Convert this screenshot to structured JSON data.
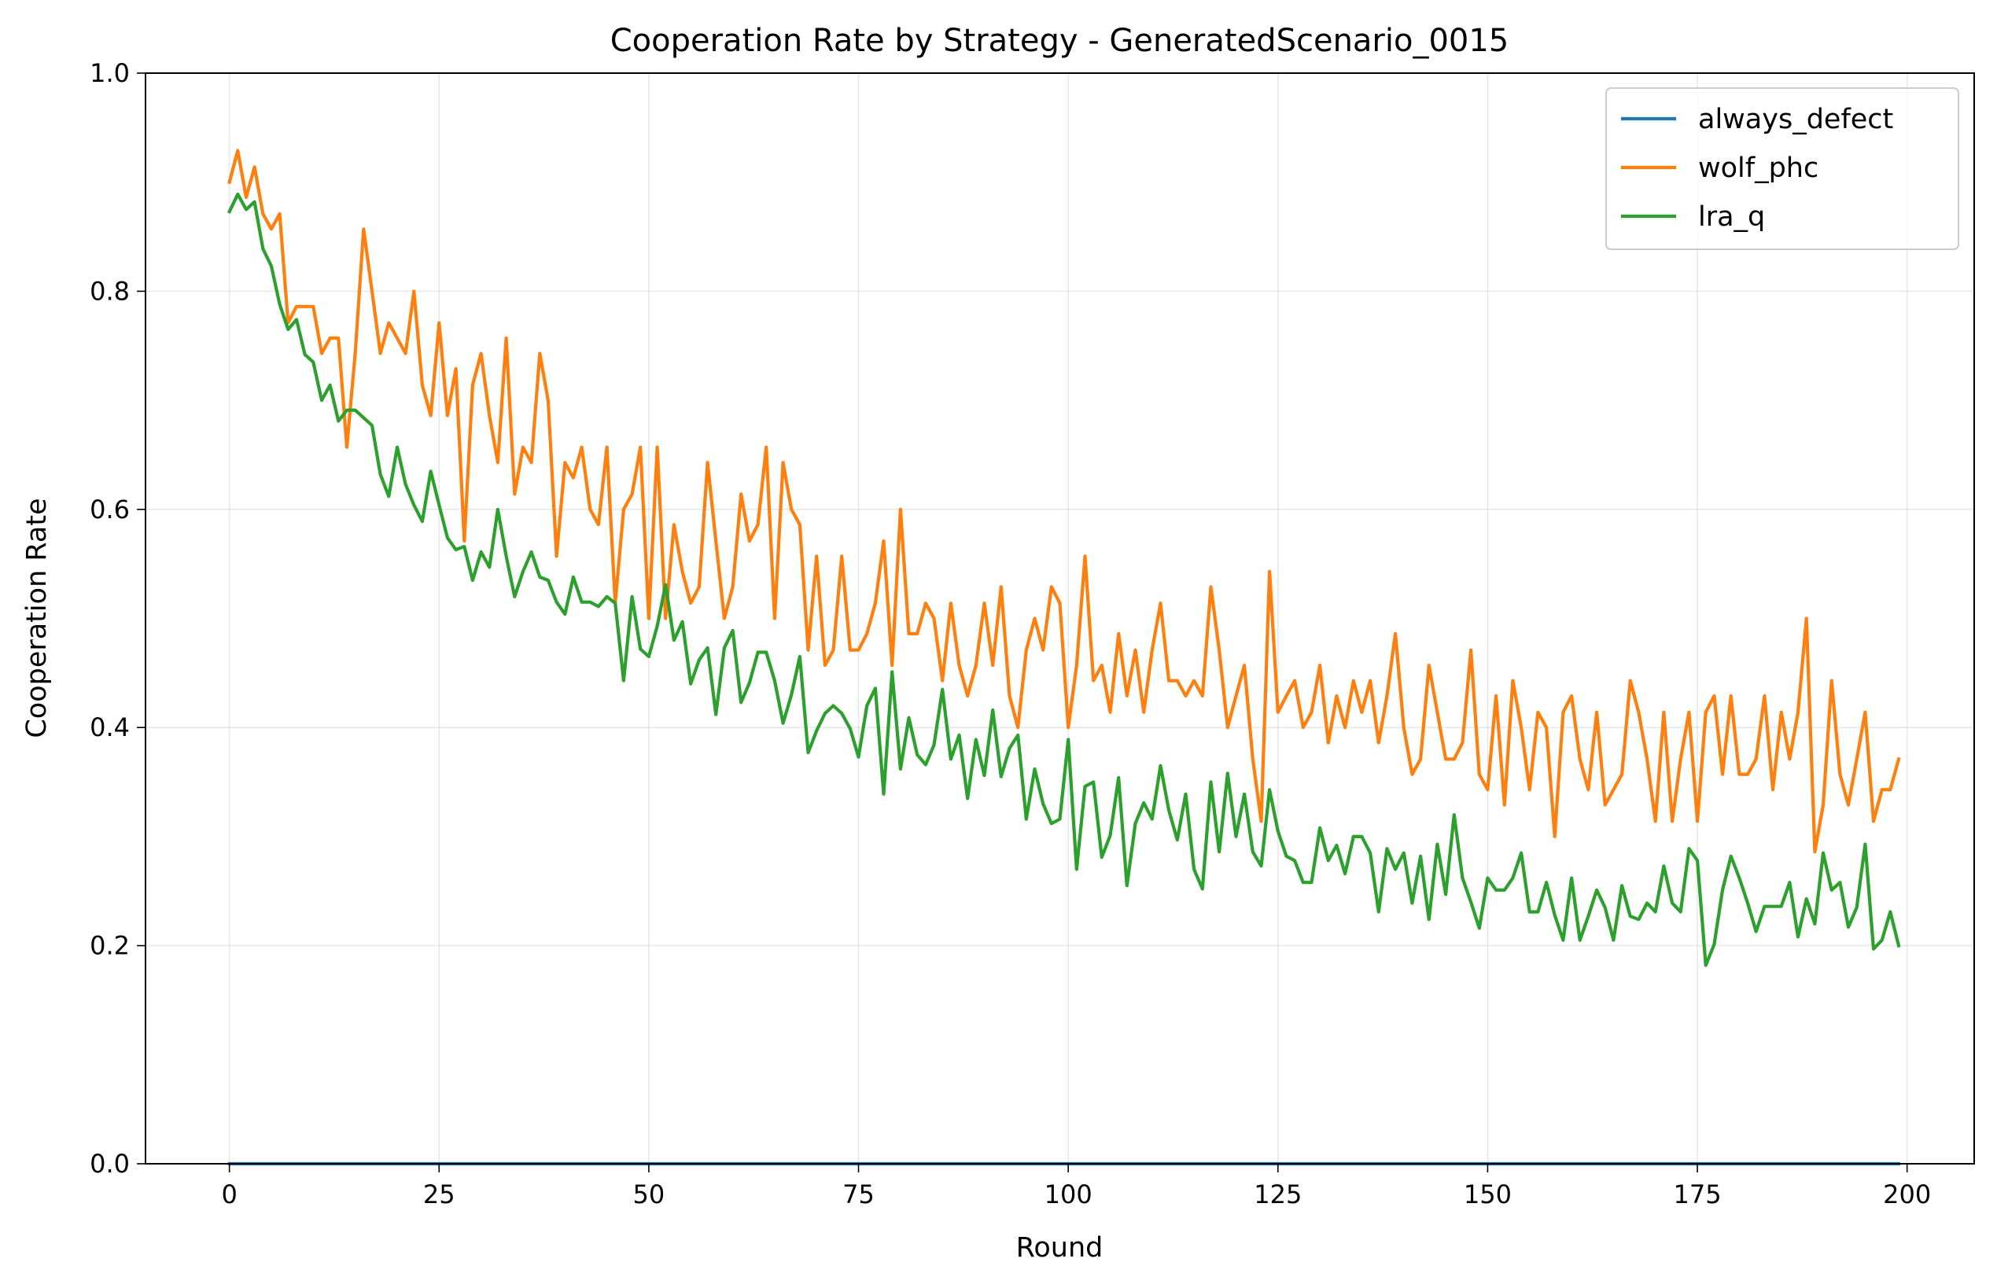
{
  "chart_data": {
    "type": "line",
    "title": "Cooperation Rate by Strategy - GeneratedScenario_0015",
    "xlabel": "Round",
    "ylabel": "Cooperation Rate",
    "xlim": [
      -10,
      208
    ],
    "ylim": [
      0,
      1
    ],
    "xticks": [
      0,
      25,
      50,
      75,
      100,
      125,
      150,
      175,
      200
    ],
    "yticks": [
      0.0,
      0.2,
      0.4,
      0.6,
      0.8,
      1.0
    ],
    "xtick_labels": [
      "0",
      "25",
      "50",
      "75",
      "100",
      "125",
      "150",
      "175",
      "200"
    ],
    "ytick_labels": [
      "0.0",
      "0.2",
      "0.4",
      "0.6",
      "0.8",
      "1.0"
    ],
    "grid": true,
    "legend_position": "top-right",
    "x_start": 0,
    "series": [
      {
        "name": "always_defect",
        "color": "#1f77b4",
        "values": [
          0,
          0,
          0,
          0,
          0,
          0,
          0,
          0,
          0,
          0,
          0,
          0,
          0,
          0,
          0,
          0,
          0,
          0,
          0,
          0,
          0,
          0,
          0,
          0,
          0,
          0,
          0,
          0,
          0,
          0,
          0,
          0,
          0,
          0,
          0,
          0,
          0,
          0,
          0,
          0,
          0,
          0,
          0,
          0,
          0,
          0,
          0,
          0,
          0,
          0,
          0,
          0,
          0,
          0,
          0,
          0,
          0,
          0,
          0,
          0,
          0,
          0,
          0,
          0,
          0,
          0,
          0,
          0,
          0,
          0,
          0,
          0,
          0,
          0,
          0,
          0,
          0,
          0,
          0,
          0,
          0,
          0,
          0,
          0,
          0,
          0,
          0,
          0,
          0,
          0,
          0,
          0,
          0,
          0,
          0,
          0,
          0,
          0,
          0,
          0,
          0,
          0,
          0,
          0,
          0,
          0,
          0,
          0,
          0,
          0,
          0,
          0,
          0,
          0,
          0,
          0,
          0,
          0,
          0,
          0,
          0,
          0,
          0,
          0,
          0,
          0,
          0,
          0,
          0,
          0,
          0,
          0,
          0,
          0,
          0,
          0,
          0,
          0,
          0,
          0,
          0,
          0,
          0,
          0,
          0,
          0,
          0,
          0,
          0,
          0,
          0,
          0,
          0,
          0,
          0,
          0,
          0,
          0,
          0,
          0,
          0,
          0,
          0,
          0,
          0,
          0,
          0,
          0,
          0,
          0,
          0,
          0,
          0,
          0,
          0,
          0,
          0,
          0,
          0,
          0,
          0,
          0,
          0,
          0,
          0,
          0,
          0,
          0,
          0,
          0,
          0,
          0,
          0,
          0,
          0,
          0,
          0,
          0,
          0,
          0
        ]
      },
      {
        "name": "wolf_phc",
        "color": "#ff7f0e",
        "values": [
          0.9,
          0.929,
          0.886,
          0.914,
          0.871,
          0.857,
          0.871,
          0.771,
          0.786,
          0.786,
          0.786,
          0.743,
          0.757,
          0.757,
          0.657,
          0.743,
          0.857,
          0.8,
          0.743,
          0.771,
          0.757,
          0.743,
          0.8,
          0.714,
          0.686,
          0.771,
          0.686,
          0.729,
          0.571,
          0.714,
          0.743,
          0.686,
          0.643,
          0.757,
          0.614,
          0.657,
          0.643,
          0.743,
          0.7,
          0.557,
          0.643,
          0.629,
          0.657,
          0.6,
          0.586,
          0.657,
          0.514,
          0.6,
          0.614,
          0.657,
          0.5,
          0.657,
          0.5,
          0.586,
          0.543,
          0.514,
          0.529,
          0.643,
          0.571,
          0.5,
          0.529,
          0.614,
          0.571,
          0.586,
          0.657,
          0.5,
          0.643,
          0.6,
          0.586,
          0.471,
          0.557,
          0.457,
          0.471,
          0.557,
          0.471,
          0.471,
          0.486,
          0.514,
          0.571,
          0.457,
          0.6,
          0.486,
          0.486,
          0.514,
          0.5,
          0.443,
          0.514,
          0.457,
          0.429,
          0.457,
          0.514,
          0.457,
          0.529,
          0.429,
          0.4,
          0.471,
          0.5,
          0.471,
          0.529,
          0.514,
          0.4,
          0.457,
          0.557,
          0.443,
          0.457,
          0.414,
          0.486,
          0.429,
          0.471,
          0.414,
          0.471,
          0.514,
          0.443,
          0.443,
          0.429,
          0.443,
          0.429,
          0.529,
          0.471,
          0.4,
          0.429,
          0.457,
          0.371,
          0.314,
          0.543,
          0.414,
          0.429,
          0.443,
          0.4,
          0.414,
          0.457,
          0.386,
          0.429,
          0.4,
          0.443,
          0.414,
          0.443,
          0.386,
          0.429,
          0.486,
          0.4,
          0.357,
          0.371,
          0.457,
          0.414,
          0.371,
          0.371,
          0.386,
          0.471,
          0.357,
          0.343,
          0.429,
          0.329,
          0.443,
          0.4,
          0.343,
          0.414,
          0.4,
          0.3,
          0.414,
          0.429,
          0.371,
          0.343,
          0.414,
          0.329,
          0.343,
          0.357,
          0.443,
          0.414,
          0.371,
          0.314,
          0.414,
          0.314,
          0.371,
          0.414,
          0.314,
          0.414,
          0.429,
          0.357,
          0.429,
          0.357,
          0.357,
          0.371,
          0.429,
          0.343,
          0.414,
          0.371,
          0.414,
          0.5,
          0.286,
          0.329,
          0.443,
          0.357,
          0.329,
          0.371,
          0.414,
          0.314,
          0.343,
          0.343,
          0.371
        ]
      },
      {
        "name": "lra_q",
        "color": "#2ca02c",
        "values": [
          0.873,
          0.889,
          0.875,
          0.882,
          0.839,
          0.823,
          0.788,
          0.765,
          0.774,
          0.742,
          0.735,
          0.7,
          0.714,
          0.681,
          0.691,
          0.691,
          0.684,
          0.677,
          0.632,
          0.612,
          0.657,
          0.623,
          0.604,
          0.589,
          0.635,
          0.604,
          0.574,
          0.563,
          0.566,
          0.535,
          0.561,
          0.547,
          0.6,
          0.557,
          0.52,
          0.543,
          0.561,
          0.538,
          0.535,
          0.515,
          0.504,
          0.538,
          0.515,
          0.515,
          0.511,
          0.52,
          0.514,
          0.443,
          0.52,
          0.472,
          0.465,
          0.493,
          0.531,
          0.48,
          0.497,
          0.44,
          0.462,
          0.473,
          0.412,
          0.473,
          0.489,
          0.423,
          0.441,
          0.469,
          0.469,
          0.443,
          0.404,
          0.43,
          0.465,
          0.377,
          0.397,
          0.413,
          0.42,
          0.413,
          0.399,
          0.373,
          0.42,
          0.436,
          0.339,
          0.451,
          0.362,
          0.409,
          0.375,
          0.366,
          0.384,
          0.435,
          0.371,
          0.393,
          0.335,
          0.389,
          0.356,
          0.416,
          0.355,
          0.381,
          0.393,
          0.316,
          0.362,
          0.33,
          0.312,
          0.316,
          0.389,
          0.27,
          0.346,
          0.35,
          0.281,
          0.301,
          0.354,
          0.255,
          0.312,
          0.331,
          0.316,
          0.365,
          0.324,
          0.297,
          0.339,
          0.27,
          0.252,
          0.35,
          0.286,
          0.358,
          0.3,
          0.339,
          0.286,
          0.273,
          0.343,
          0.305,
          0.282,
          0.278,
          0.258,
          0.258,
          0.308,
          0.278,
          0.292,
          0.266,
          0.3,
          0.3,
          0.285,
          0.231,
          0.289,
          0.27,
          0.285,
          0.239,
          0.282,
          0.224,
          0.293,
          0.247,
          0.32,
          0.262,
          0.24,
          0.216,
          0.262,
          0.251,
          0.251,
          0.262,
          0.285,
          0.231,
          0.231,
          0.258,
          0.228,
          0.205,
          0.262,
          0.205,
          0.227,
          0.251,
          0.235,
          0.205,
          0.255,
          0.227,
          0.224,
          0.239,
          0.231,
          0.273,
          0.239,
          0.231,
          0.289,
          0.278,
          0.182,
          0.201,
          0.251,
          0.282,
          0.262,
          0.239,
          0.213,
          0.236,
          0.236,
          0.236,
          0.258,
          0.208,
          0.243,
          0.22,
          0.285,
          0.251,
          0.258,
          0.217,
          0.235,
          0.293,
          0.197,
          0.205,
          0.231,
          0.2
        ]
      }
    ]
  }
}
